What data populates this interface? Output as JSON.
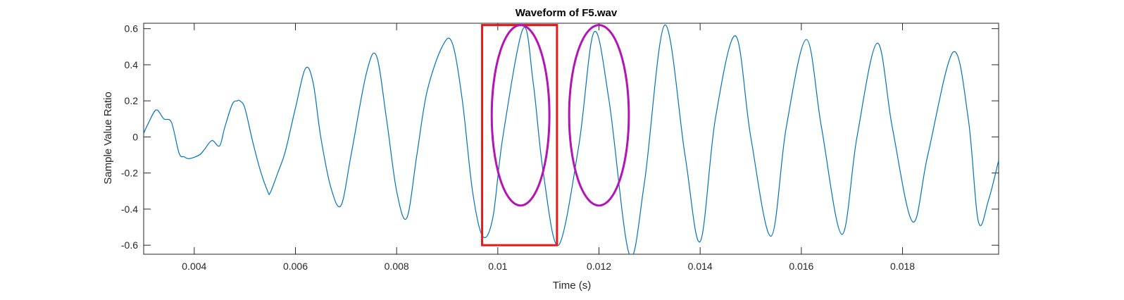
{
  "chart_data": {
    "type": "line",
    "title": "Waveform of F5.wav",
    "xlabel": "Time (s)",
    "ylabel": "Sample Value Ratio",
    "xlim": [
      0.003,
      0.0199
    ],
    "ylim": [
      -0.65,
      0.63
    ],
    "xticks": [
      0.004,
      0.006,
      0.008,
      0.01,
      0.012,
      0.014,
      0.016,
      0.018
    ],
    "xtick_labels": [
      "0.004",
      "0.006",
      "0.008",
      "0.01",
      "0.012",
      "0.014",
      "0.016",
      "0.018"
    ],
    "yticks": [
      -0.6,
      -0.4,
      -0.2,
      0,
      0.2,
      0.4,
      0.6
    ],
    "ytick_labels": [
      "-0.6",
      "-0.4",
      "-0.2",
      "0",
      "0.2",
      "0.4",
      "0.6"
    ],
    "grid": false,
    "series": [
      {
        "color": "#0072BD",
        "x": [
          0.003,
          0.0031,
          0.00325,
          0.0034,
          0.00355,
          0.0037,
          0.0038,
          0.0039,
          0.0041,
          0.0042,
          0.00435,
          0.0045,
          0.0046,
          0.00475,
          0.00485,
          0.0049,
          0.005,
          0.00515,
          0.0053,
          0.00545,
          0.0055,
          0.00565,
          0.0058,
          0.006,
          0.0062,
          0.00635,
          0.0065,
          0.0067,
          0.0069,
          0.0071,
          0.0074,
          0.0076,
          0.0078,
          0.008,
          0.0082,
          0.0084,
          0.0086,
          0.0089,
          0.0091,
          0.0093,
          0.0095,
          0.0097,
          0.0099,
          0.0101,
          0.0105,
          0.0107,
          0.0109,
          0.0112,
          0.0116,
          0.0119,
          0.0122,
          0.0126,
          0.0129,
          0.0133,
          0.0137,
          0.014,
          0.0143,
          0.0147,
          0.015,
          0.0154,
          0.0157,
          0.0161,
          0.0164,
          0.0168,
          0.0171,
          0.0175,
          0.0178,
          0.0182,
          0.0185,
          0.019,
          0.0193,
          0.0195,
          0.0197,
          0.0199
        ],
        "y": [
          0.02,
          0.08,
          0.15,
          0.1,
          0.08,
          -0.09,
          -0.11,
          -0.12,
          -0.1,
          -0.07,
          -0.02,
          -0.05,
          0.05,
          0.18,
          0.2,
          0.2,
          0.16,
          -0.02,
          -0.18,
          -0.3,
          -0.31,
          -0.2,
          -0.08,
          0.16,
          0.38,
          0.3,
          0.0,
          -0.28,
          -0.38,
          -0.1,
          0.35,
          0.45,
          0.1,
          -0.3,
          -0.45,
          -0.1,
          0.25,
          0.5,
          0.52,
          0.2,
          -0.3,
          -0.55,
          -0.45,
          0.0,
          0.6,
          0.3,
          -0.2,
          -0.6,
          -0.05,
          0.58,
          0.2,
          -0.65,
          -0.25,
          0.62,
          -0.1,
          -0.58,
          0.1,
          0.56,
          0.0,
          -0.55,
          0.05,
          0.54,
          0.05,
          -0.54,
          0.0,
          0.52,
          0.05,
          -0.47,
          -0.1,
          0.47,
          0.1,
          -0.47,
          -0.35,
          -0.13
        ]
      }
    ],
    "annotations": [
      {
        "shape": "rectangle",
        "color": "#E8191B",
        "x": [
          0.00969,
          0.01117
        ],
        "y": [
          -0.6,
          0.62
        ]
      },
      {
        "shape": "ellipse",
        "color": "#B513B5",
        "center": [
          0.01045,
          0.12
        ],
        "radius_x": 0.00057,
        "radius_y": 0.5
      },
      {
        "shape": "ellipse",
        "color": "#B513B5",
        "center": [
          0.012,
          0.12
        ],
        "radius_x": 0.00059,
        "radius_y": 0.5
      }
    ]
  }
}
